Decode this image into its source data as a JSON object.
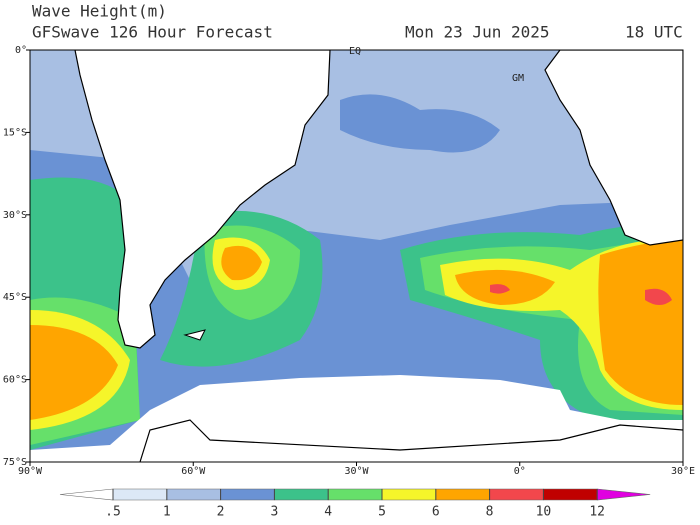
{
  "header": {
    "title": "Wave Height(m)",
    "subtitle": "GFSwave 126 Hour Forecast",
    "date": "Mon 23 Jun 2025",
    "time": "18 UTC"
  },
  "map": {
    "lonlim": [
      -90,
      30
    ],
    "latlim": [
      0,
      -75
    ],
    "lat_ticks": [
      {
        "value": 0,
        "label": "0°"
      },
      {
        "value": -15,
        "label": "15°S"
      },
      {
        "value": -30,
        "label": "30°S"
      },
      {
        "value": -45,
        "label": "45°S"
      },
      {
        "value": -60,
        "label": "60°S"
      },
      {
        "value": -75,
        "label": "75°S"
      }
    ],
    "lon_ticks": [
      {
        "value": -90,
        "label": "90°W"
      },
      {
        "value": -60,
        "label": "60°W"
      },
      {
        "value": -30,
        "label": "30°W"
      },
      {
        "value": 0,
        "label": "0°"
      },
      {
        "value": 30,
        "label": "30°E"
      }
    ],
    "annotations": [
      "EQ",
      "GM"
    ]
  },
  "legend": {
    "ticks": [
      {
        "value": 0.5,
        "label": ".5"
      },
      1,
      2,
      3,
      4,
      5,
      6,
      8,
      10,
      12
    ],
    "colors": [
      "#ffffff",
      "#dce8f6",
      "#a8bfe3",
      "#6a92d4",
      "#3cc28a",
      "#66e06a",
      "#f5f52a",
      "#ffa500",
      "#f2474c",
      "#c00000",
      "#e000e0"
    ]
  }
}
